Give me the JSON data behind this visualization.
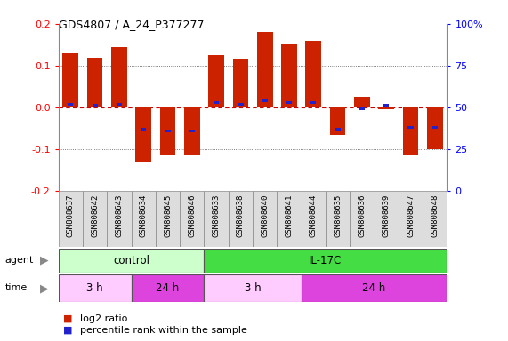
{
  "title": "GDS4807 / A_24_P377277",
  "samples": [
    "GSM808637",
    "GSM808642",
    "GSM808643",
    "GSM808634",
    "GSM808645",
    "GSM808646",
    "GSM808633",
    "GSM808638",
    "GSM808640",
    "GSM808641",
    "GSM808644",
    "GSM808635",
    "GSM808636",
    "GSM808639",
    "GSM808647",
    "GSM808648"
  ],
  "log2_ratio": [
    0.13,
    0.12,
    0.145,
    -0.13,
    -0.115,
    -0.115,
    0.125,
    0.115,
    0.18,
    0.15,
    0.16,
    -0.065,
    0.025,
    -0.005,
    -0.115,
    -0.1
  ],
  "percentile": [
    52,
    51,
    52,
    37,
    36,
    36,
    53,
    52,
    54,
    53,
    53,
    37,
    49,
    51,
    38,
    38
  ],
  "bar_color": "#cc2200",
  "pct_color": "#2222cc",
  "agent_groups": [
    {
      "label": "control",
      "start": 0,
      "end": 6,
      "color": "#ccffcc"
    },
    {
      "label": "IL-17C",
      "start": 6,
      "end": 16,
      "color": "#44dd44"
    }
  ],
  "time_groups": [
    {
      "label": "3 h",
      "start": 0,
      "end": 3,
      "color": "#ffccff"
    },
    {
      "label": "24 h",
      "start": 3,
      "end": 6,
      "color": "#dd44dd"
    },
    {
      "label": "3 h",
      "start": 6,
      "end": 10,
      "color": "#ffccff"
    },
    {
      "label": "24 h",
      "start": 10,
      "end": 16,
      "color": "#dd44dd"
    }
  ],
  "ylim": [
    -0.2,
    0.2
  ],
  "yticks_left": [
    -0.2,
    -0.1,
    0.0,
    0.1,
    0.2
  ],
  "yticks_right_labels": [
    "0",
    "25",
    "50",
    "75",
    "100%"
  ],
  "hline_color": "#cc0000",
  "dotted_color": "#555555",
  "background_color": "#ffffff",
  "legend_items": [
    {
      "label": "log2 ratio",
      "color": "#cc2200"
    },
    {
      "label": "percentile rank within the sample",
      "color": "#2222cc"
    }
  ]
}
